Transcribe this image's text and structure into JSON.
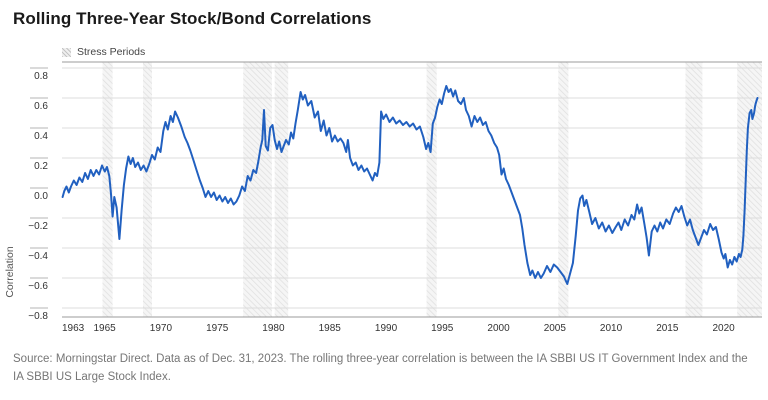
{
  "title": "Rolling Three-Year Stock/Bond Correlations",
  "legend": {
    "label": "Stress Periods"
  },
  "footer": "Source: Morningstar Direct. Data as of Dec. 31, 2023. The rolling three-year correlation is between the IA SBBI US IT Government Index and the IA SBBI US Large Stock Index.",
  "chart_data": {
    "type": "line",
    "title": "Rolling Three-Year Stock/Bond Correlations",
    "xlabel": "",
    "ylabel": "Correlation",
    "legend_position": "top-left",
    "grid": true,
    "line_color": "#2160c0",
    "grid_color": "#dcdcdc",
    "axis_color": "#9b9b9b",
    "tick_text_color": "#333333",
    "band_stripe_color": "#dedede",
    "band_bg_color": "#f5f5f5",
    "x_domain": [
      1962.2,
      2024.4
    ],
    "y_domain": [
      -0.86,
      0.84
    ],
    "x_ticks": [
      1963,
      1965,
      1970,
      1975,
      1980,
      1985,
      1990,
      1995,
      2000,
      2005,
      2010,
      2015,
      2020
    ],
    "y_ticks": [
      0.8,
      0.6,
      0.4,
      0.2,
      0.0,
      -0.2,
      -0.4,
      -0.6,
      -0.8
    ],
    "stress_periods": [
      [
        1965.8,
        1966.7
      ],
      [
        1969.4,
        1970.2
      ],
      [
        1978.3,
        1980.85
      ],
      [
        1981.1,
        1982.3
      ],
      [
        1994.6,
        1995.5
      ],
      [
        2006.3,
        2007.2
      ],
      [
        2017.6,
        2019.1
      ],
      [
        2022.2,
        2024.4
      ]
    ],
    "series": [
      {
        "name": "Rolling three-year stock/bond correlation",
        "points": [
          [
            1962.25,
            -0.06
          ],
          [
            1962.4,
            -0.02
          ],
          [
            1962.6,
            0.01
          ],
          [
            1962.8,
            -0.03
          ],
          [
            1963.0,
            0.01
          ],
          [
            1963.25,
            0.05
          ],
          [
            1963.5,
            0.02
          ],
          [
            1963.75,
            0.07
          ],
          [
            1964.0,
            0.04
          ],
          [
            1964.25,
            0.1
          ],
          [
            1964.5,
            0.06
          ],
          [
            1964.75,
            0.12
          ],
          [
            1965.0,
            0.08
          ],
          [
            1965.25,
            0.12
          ],
          [
            1965.5,
            0.09
          ],
          [
            1965.75,
            0.15
          ],
          [
            1966.0,
            0.11
          ],
          [
            1966.2,
            0.14
          ],
          [
            1966.4,
            0.08
          ],
          [
            1966.55,
            -0.04
          ],
          [
            1966.7,
            -0.19
          ],
          [
            1966.85,
            -0.06
          ],
          [
            1967.05,
            -0.13
          ],
          [
            1967.3,
            -0.34
          ],
          [
            1967.5,
            -0.15
          ],
          [
            1967.7,
            0.02
          ],
          [
            1967.9,
            0.13
          ],
          [
            1968.1,
            0.21
          ],
          [
            1968.3,
            0.16
          ],
          [
            1968.5,
            0.2
          ],
          [
            1968.7,
            0.14
          ],
          [
            1968.95,
            0.17
          ],
          [
            1969.2,
            0.12
          ],
          [
            1969.45,
            0.15
          ],
          [
            1969.7,
            0.11
          ],
          [
            1969.95,
            0.16
          ],
          [
            1970.2,
            0.22
          ],
          [
            1970.45,
            0.19
          ],
          [
            1970.7,
            0.27
          ],
          [
            1970.95,
            0.24
          ],
          [
            1971.2,
            0.38
          ],
          [
            1971.4,
            0.44
          ],
          [
            1971.6,
            0.39
          ],
          [
            1971.85,
            0.48
          ],
          [
            1972.05,
            0.44
          ],
          [
            1972.25,
            0.51
          ],
          [
            1972.5,
            0.47
          ],
          [
            1972.8,
            0.41
          ],
          [
            1973.1,
            0.34
          ],
          [
            1973.35,
            0.3
          ],
          [
            1973.6,
            0.25
          ],
          [
            1973.9,
            0.18
          ],
          [
            1974.15,
            0.12
          ],
          [
            1974.45,
            0.05
          ],
          [
            1974.7,
            0.0
          ],
          [
            1974.95,
            -0.06
          ],
          [
            1975.2,
            -0.02
          ],
          [
            1975.45,
            -0.06
          ],
          [
            1975.7,
            -0.03
          ],
          [
            1975.95,
            -0.08
          ],
          [
            1976.2,
            -0.05
          ],
          [
            1976.45,
            -0.09
          ],
          [
            1976.7,
            -0.06
          ],
          [
            1976.95,
            -0.1
          ],
          [
            1977.2,
            -0.07
          ],
          [
            1977.45,
            -0.11
          ],
          [
            1977.7,
            -0.09
          ],
          [
            1977.95,
            -0.05
          ],
          [
            1978.2,
            0.01
          ],
          [
            1978.45,
            -0.02
          ],
          [
            1978.7,
            0.08
          ],
          [
            1978.95,
            0.05
          ],
          [
            1979.2,
            0.12
          ],
          [
            1979.45,
            0.1
          ],
          [
            1979.65,
            0.18
          ],
          [
            1979.85,
            0.27
          ],
          [
            1980.0,
            0.32
          ],
          [
            1980.15,
            0.52
          ],
          [
            1980.3,
            0.28
          ],
          [
            1980.5,
            0.25
          ],
          [
            1980.7,
            0.4
          ],
          [
            1980.9,
            0.42
          ],
          [
            1981.1,
            0.32
          ],
          [
            1981.3,
            0.26
          ],
          [
            1981.5,
            0.31
          ],
          [
            1981.7,
            0.24
          ],
          [
            1981.9,
            0.28
          ],
          [
            1982.1,
            0.32
          ],
          [
            1982.35,
            0.29
          ],
          [
            1982.55,
            0.37
          ],
          [
            1982.75,
            0.33
          ],
          [
            1982.95,
            0.43
          ],
          [
            1983.15,
            0.52
          ],
          [
            1983.4,
            0.64
          ],
          [
            1983.6,
            0.59
          ],
          [
            1983.8,
            0.62
          ],
          [
            1984.05,
            0.55
          ],
          [
            1984.35,
            0.58
          ],
          [
            1984.65,
            0.47
          ],
          [
            1984.95,
            0.51
          ],
          [
            1985.2,
            0.38
          ],
          [
            1985.45,
            0.45
          ],
          [
            1985.7,
            0.35
          ],
          [
            1985.95,
            0.4
          ],
          [
            1986.2,
            0.31
          ],
          [
            1986.45,
            0.35
          ],
          [
            1986.7,
            0.31
          ],
          [
            1986.95,
            0.33
          ],
          [
            1987.2,
            0.3
          ],
          [
            1987.45,
            0.24
          ],
          [
            1987.6,
            0.32
          ],
          [
            1987.8,
            0.2
          ],
          [
            1988.05,
            0.15
          ],
          [
            1988.3,
            0.17
          ],
          [
            1988.55,
            0.12
          ],
          [
            1988.8,
            0.15
          ],
          [
            1989.05,
            0.11
          ],
          [
            1989.3,
            0.13
          ],
          [
            1989.55,
            0.09
          ],
          [
            1989.8,
            0.05
          ],
          [
            1990.0,
            0.1
          ],
          [
            1990.2,
            0.08
          ],
          [
            1990.4,
            0.17
          ],
          [
            1990.55,
            0.51
          ],
          [
            1990.75,
            0.46
          ],
          [
            1991.0,
            0.49
          ],
          [
            1991.3,
            0.44
          ],
          [
            1991.6,
            0.47
          ],
          [
            1991.9,
            0.43
          ],
          [
            1992.2,
            0.45
          ],
          [
            1992.5,
            0.42
          ],
          [
            1992.8,
            0.44
          ],
          [
            1993.1,
            0.41
          ],
          [
            1993.4,
            0.43
          ],
          [
            1993.7,
            0.39
          ],
          [
            1994.0,
            0.41
          ],
          [
            1994.3,
            0.34
          ],
          [
            1994.55,
            0.26
          ],
          [
            1994.75,
            0.3
          ],
          [
            1994.95,
            0.24
          ],
          [
            1995.15,
            0.43
          ],
          [
            1995.35,
            0.47
          ],
          [
            1995.55,
            0.54
          ],
          [
            1995.75,
            0.59
          ],
          [
            1995.95,
            0.56
          ],
          [
            1996.15,
            0.63
          ],
          [
            1996.35,
            0.68
          ],
          [
            1996.55,
            0.64
          ],
          [
            1996.75,
            0.66
          ],
          [
            1996.95,
            0.61
          ],
          [
            1997.15,
            0.65
          ],
          [
            1997.4,
            0.58
          ],
          [
            1997.65,
            0.56
          ],
          [
            1997.9,
            0.6
          ],
          [
            1998.1,
            0.52
          ],
          [
            1998.35,
            0.48
          ],
          [
            1998.6,
            0.41
          ],
          [
            1998.85,
            0.48
          ],
          [
            1999.1,
            0.44
          ],
          [
            1999.35,
            0.47
          ],
          [
            1999.6,
            0.42
          ],
          [
            1999.85,
            0.44
          ],
          [
            2000.1,
            0.38
          ],
          [
            2000.35,
            0.35
          ],
          [
            2000.6,
            0.3
          ],
          [
            2000.85,
            0.27
          ],
          [
            2001.05,
            0.22
          ],
          [
            2001.25,
            0.09
          ],
          [
            2001.45,
            0.13
          ],
          [
            2001.65,
            0.06
          ],
          [
            2001.9,
            0.02
          ],
          [
            2002.15,
            -0.03
          ],
          [
            2002.4,
            -0.08
          ],
          [
            2002.65,
            -0.13
          ],
          [
            2002.9,
            -0.18
          ],
          [
            2003.1,
            -0.27
          ],
          [
            2003.3,
            -0.38
          ],
          [
            2003.55,
            -0.5
          ],
          [
            2003.8,
            -0.58
          ],
          [
            2004.0,
            -0.55
          ],
          [
            2004.25,
            -0.6
          ],
          [
            2004.5,
            -0.56
          ],
          [
            2004.75,
            -0.6
          ],
          [
            2005.0,
            -0.57
          ],
          [
            2005.3,
            -0.52
          ],
          [
            2005.6,
            -0.56
          ],
          [
            2005.9,
            -0.51
          ],
          [
            2006.2,
            -0.53
          ],
          [
            2006.5,
            -0.56
          ],
          [
            2006.8,
            -0.59
          ],
          [
            2007.1,
            -0.64
          ],
          [
            2007.35,
            -0.57
          ],
          [
            2007.6,
            -0.5
          ],
          [
            2007.85,
            -0.32
          ],
          [
            2008.05,
            -0.15
          ],
          [
            2008.25,
            -0.07
          ],
          [
            2008.45,
            -0.05
          ],
          [
            2008.6,
            -0.12
          ],
          [
            2008.8,
            -0.08
          ],
          [
            2009.05,
            -0.16
          ],
          [
            2009.3,
            -0.24
          ],
          [
            2009.6,
            -0.2
          ],
          [
            2009.9,
            -0.27
          ],
          [
            2010.2,
            -0.23
          ],
          [
            2010.5,
            -0.29
          ],
          [
            2010.8,
            -0.25
          ],
          [
            2011.1,
            -0.3
          ],
          [
            2011.4,
            -0.26
          ],
          [
            2011.65,
            -0.23
          ],
          [
            2011.9,
            -0.28
          ],
          [
            2012.2,
            -0.21
          ],
          [
            2012.5,
            -0.25
          ],
          [
            2012.8,
            -0.18
          ],
          [
            2013.05,
            -0.21
          ],
          [
            2013.3,
            -0.11
          ],
          [
            2013.5,
            -0.17
          ],
          [
            2013.7,
            -0.13
          ],
          [
            2013.95,
            -0.24
          ],
          [
            2014.15,
            -0.33
          ],
          [
            2014.35,
            -0.45
          ],
          [
            2014.6,
            -0.29
          ],
          [
            2014.85,
            -0.25
          ],
          [
            2015.1,
            -0.29
          ],
          [
            2015.35,
            -0.23
          ],
          [
            2015.6,
            -0.27
          ],
          [
            2015.9,
            -0.21
          ],
          [
            2016.2,
            -0.24
          ],
          [
            2016.5,
            -0.17
          ],
          [
            2016.75,
            -0.13
          ],
          [
            2017.0,
            -0.16
          ],
          [
            2017.25,
            -0.12
          ],
          [
            2017.5,
            -0.19
          ],
          [
            2017.75,
            -0.25
          ],
          [
            2018.0,
            -0.21
          ],
          [
            2018.25,
            -0.28
          ],
          [
            2018.5,
            -0.33
          ],
          [
            2018.75,
            -0.38
          ],
          [
            2019.0,
            -0.33
          ],
          [
            2019.25,
            -0.28
          ],
          [
            2019.5,
            -0.31
          ],
          [
            2019.8,
            -0.24
          ],
          [
            2020.05,
            -0.28
          ],
          [
            2020.3,
            -0.26
          ],
          [
            2020.55,
            -0.34
          ],
          [
            2020.8,
            -0.43
          ],
          [
            2021.0,
            -0.47
          ],
          [
            2021.15,
            -0.44
          ],
          [
            2021.35,
            -0.53
          ],
          [
            2021.55,
            -0.48
          ],
          [
            2021.75,
            -0.51
          ],
          [
            2021.95,
            -0.46
          ],
          [
            2022.15,
            -0.49
          ],
          [
            2022.35,
            -0.44
          ],
          [
            2022.5,
            -0.46
          ],
          [
            2022.65,
            -0.41
          ],
          [
            2022.75,
            -0.32
          ],
          [
            2022.85,
            -0.15
          ],
          [
            2022.95,
            0.05
          ],
          [
            2023.05,
            0.25
          ],
          [
            2023.15,
            0.4
          ],
          [
            2023.3,
            0.5
          ],
          [
            2023.45,
            0.52
          ],
          [
            2023.55,
            0.46
          ],
          [
            2023.7,
            0.5
          ],
          [
            2023.8,
            0.55
          ],
          [
            2023.9,
            0.58
          ],
          [
            2024.0,
            0.6
          ]
        ]
      }
    ]
  }
}
